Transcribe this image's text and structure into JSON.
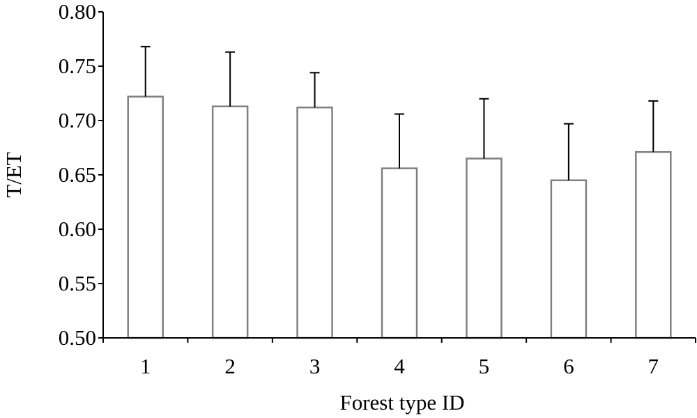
{
  "chart_data": {
    "type": "bar",
    "categories": [
      "1",
      "2",
      "3",
      "4",
      "5",
      "6",
      "7"
    ],
    "values": [
      0.722,
      0.713,
      0.712,
      0.656,
      0.665,
      0.645,
      0.671
    ],
    "error_plus": [
      0.046,
      0.05,
      0.032,
      0.05,
      0.055,
      0.052,
      0.047
    ],
    "xlabel": "Forest type ID",
    "ylabel": "T/ET",
    "ylim": [
      0.5,
      0.8
    ],
    "yticks": [
      "0.50",
      "0.55",
      "0.60",
      "0.65",
      "0.70",
      "0.75",
      "0.80"
    ],
    "grid": false,
    "legend": "none",
    "colors": {
      "bar_fill": "#ffffff",
      "bar_stroke": "#808080",
      "axis": "#000000",
      "error_bar": "#000000"
    }
  }
}
